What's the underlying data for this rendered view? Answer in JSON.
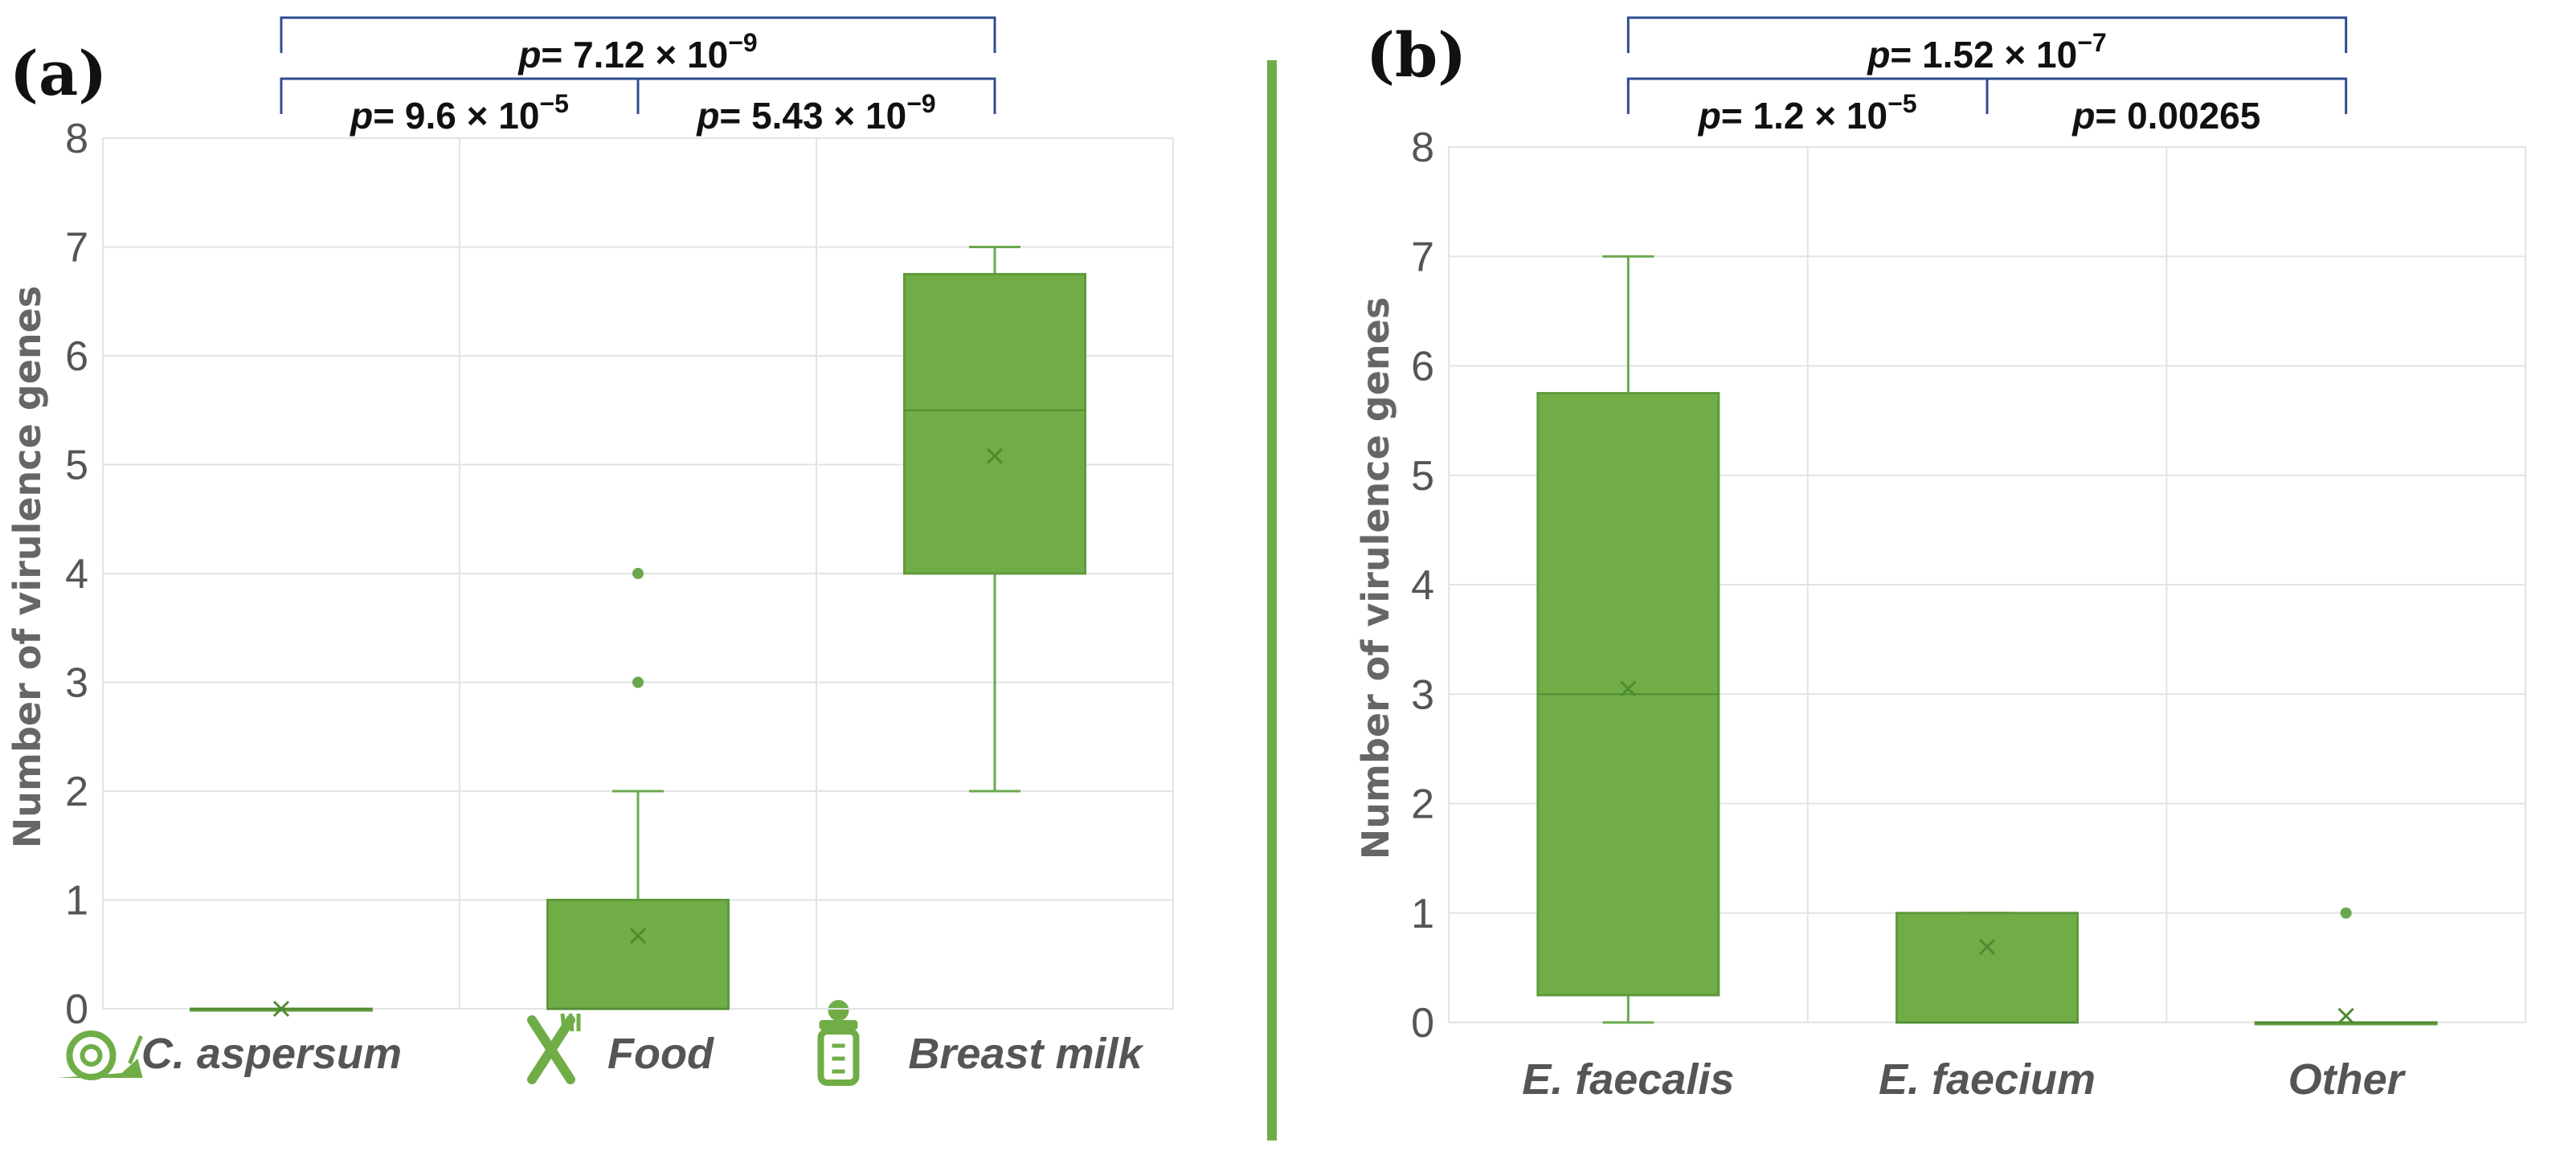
{
  "colors": {
    "box_fill": "#70ad47",
    "box_stroke": "#5e9a3c",
    "whisker": "#6aa84f",
    "mean_marker": "#4e8a32",
    "grid": "#e3e3e3",
    "bracket": "#2f4d8f",
    "divider": "#70ad47"
  },
  "chart_data": [
    {
      "type": "box",
      "panel_label": "(a)",
      "ylabel": "Number of virulence genes",
      "ylim": [
        0,
        8
      ],
      "yticks": [
        "0",
        "1",
        "2",
        "3",
        "4",
        "5",
        "6",
        "7",
        "8"
      ],
      "categories": [
        "C. aspersum",
        "Food",
        "Breast milk"
      ],
      "category_icons": [
        "snail-icon",
        "fork-knife-icon",
        "baby-bottle-icon"
      ],
      "boxes": [
        {
          "min": 0,
          "q1": 0,
          "median": 0,
          "q3": 0,
          "max": 0,
          "mean": 0,
          "outliers": []
        },
        {
          "min": 0,
          "q1": 0,
          "median": 0,
          "q3": 1,
          "max": 2,
          "mean": 0.67,
          "outliers": [
            3,
            4
          ]
        },
        {
          "min": 2,
          "q1": 4,
          "median": 5.5,
          "q3": 6.75,
          "max": 7,
          "mean": 5.08,
          "outliers": []
        }
      ],
      "comparisons": [
        {
          "from": 0,
          "to": 2,
          "level": 2,
          "label_p": "p",
          "label_rest": "= 7.12 × 10",
          "label_exp": "−9"
        },
        {
          "from": 0,
          "to": 1,
          "level": 1,
          "label_p": "p",
          "label_rest": "= 9.6 × 10",
          "label_exp": "−5"
        },
        {
          "from": 1,
          "to": 2,
          "level": 1,
          "label_p": "p",
          "label_rest": "= 5.43 × 10",
          "label_exp": "−9"
        }
      ]
    },
    {
      "type": "box",
      "panel_label": "(b)",
      "ylabel": "Number of virulence genes",
      "ylim": [
        0,
        8
      ],
      "yticks": [
        "0",
        "1",
        "2",
        "3",
        "4",
        "5",
        "6",
        "7",
        "8"
      ],
      "categories": [
        "E. faecalis",
        "E. faecium",
        "Other"
      ],
      "category_icons": [],
      "boxes": [
        {
          "min": 0,
          "q1": 0.25,
          "median": 3,
          "q3": 5.75,
          "max": 7,
          "mean": 3.05,
          "outliers": []
        },
        {
          "min": 0,
          "q1": 0,
          "median": 0,
          "q3": 1,
          "max": 1,
          "mean": 0.69,
          "outliers": []
        },
        {
          "min": 0,
          "q1": 0,
          "median": 0,
          "q3": 0,
          "max": 0,
          "mean": 0.06,
          "outliers": [
            1
          ]
        }
      ],
      "comparisons": [
        {
          "from": 0,
          "to": 2,
          "level": 2,
          "label_p": "p",
          "label_rest": "= 1.52 × 10",
          "label_exp": "−7"
        },
        {
          "from": 0,
          "to": 1,
          "level": 1,
          "label_p": "p",
          "label_rest": "= 1.2 × 10",
          "label_exp": "−5"
        },
        {
          "from": 1,
          "to": 2,
          "level": 1,
          "label_p": "p",
          "label_rest": "= 0.00265",
          "label_exp": ""
        }
      ]
    }
  ]
}
